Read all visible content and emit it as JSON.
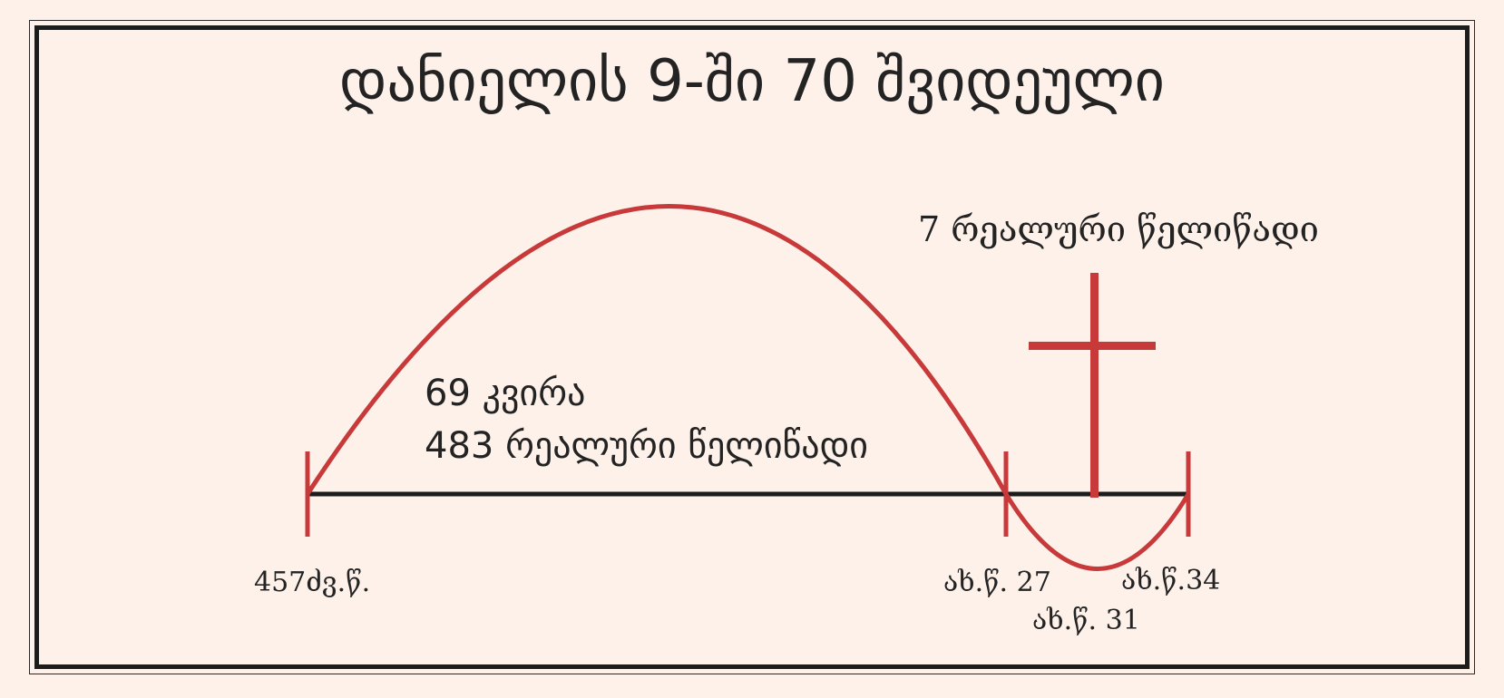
{
  "title": "დანიელის 9-ში 70 შვიდეული",
  "segment_main": {
    "line1": "69 კვირა",
    "line2": "483 რეალური წელიწადი"
  },
  "segment_last": {
    "label": "7 რეალური წელიწადი"
  },
  "dates": {
    "start": "457ძვ.წ.",
    "baptism": "ახ.წ. 27",
    "cross": "ახ.წ. 31",
    "end": "ახ.წ.34"
  },
  "colors": {
    "accent": "#c8393a",
    "line": "#1c1c1c",
    "background": "#fdf1ea"
  }
}
